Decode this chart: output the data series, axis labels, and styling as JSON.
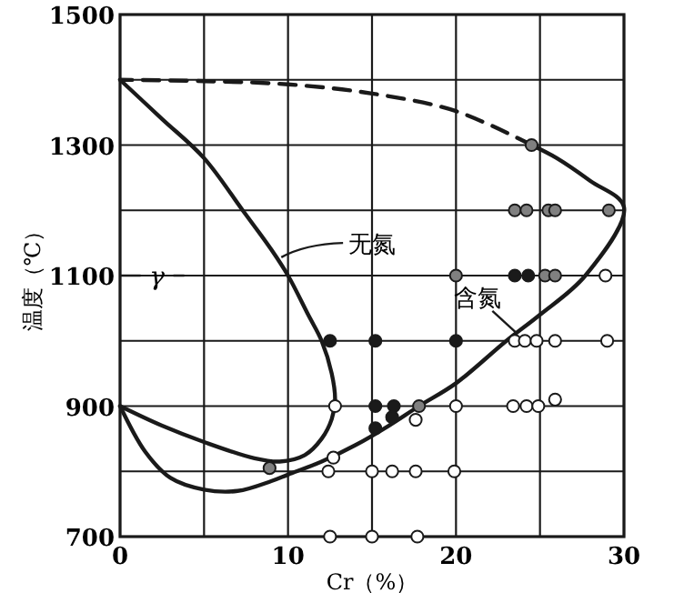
{
  "chart_data": {
    "type": "line",
    "xlabel": "Cr（%）",
    "ylabel": "温度（℃）",
    "xlim": [
      0,
      30
    ],
    "ylim": [
      700,
      1500
    ],
    "xticks": [
      0,
      {
        "value": 5,
        "label": null
      },
      10,
      {
        "value": 15,
        "label": null
      },
      20,
      {
        "value": 25,
        "label": null
      },
      30
    ],
    "yticks": [
      700,
      {
        "value": 800,
        "label": null
      },
      900,
      {
        "value": 1000,
        "label": null
      },
      1100,
      {
        "value": 1200,
        "label": null
      },
      1300,
      {
        "value": 1400,
        "label": null
      },
      1500
    ],
    "grid": true,
    "series": [
      {
        "color": "#1a1a1a",
        "line_style": "solid",
        "marker": "none",
        "x": [
          0,
          2.5,
          5,
          7.3,
          9,
          10,
          11.2,
          12,
          12.6,
          12.8,
          12.6,
          12,
          11,
          9.5,
          8,
          5,
          2.5,
          0
        ],
        "values": [
          1400,
          1340,
          1280,
          1200,
          1140,
          1100,
          1040,
          1000,
          950,
          910,
          880,
          850,
          825,
          815,
          820,
          845,
          870,
          900
        ]
      },
      {
        "color": "#1a1a1a",
        "line_style": "solid",
        "marker": "none",
        "x": [
          0,
          1.5,
          3,
          5,
          7,
          9,
          10,
          12,
          14,
          16,
          17.8,
          20,
          23,
          25,
          27.7,
          30,
          28,
          26,
          24.5
        ],
        "values": [
          900,
          830,
          790,
          772,
          770,
          785,
          795,
          815,
          840,
          870,
          900,
          935,
          1000,
          1040,
          1100,
          1205,
          1245,
          1280,
          1300
        ]
      },
      {
        "color": "#1a1a1a",
        "line_style": "dashed",
        "marker": "none",
        "x": [
          24.5,
          20,
          15,
          10,
          5,
          0
        ],
        "values": [
          1300,
          1352,
          1379,
          1393,
          1398,
          1400
        ]
      },
      {
        "type": "scatter",
        "color": "#1a1a1a",
        "marker": "circle",
        "x": [
          23.5,
          24.3,
          12.5,
          15.2,
          20,
          15.2,
          16.3,
          16.2,
          15.2
        ],
        "values": [
          1100,
          1100,
          1000,
          1000,
          1000,
          900,
          900,
          883,
          866
        ]
      },
      {
        "type": "scatter",
        "color": "#808080",
        "marker": "circle",
        "x": [
          24.5,
          23.5,
          24.2,
          25.5,
          25.9,
          29.1,
          20,
          25.3,
          25.9,
          17.8,
          8.9
        ],
        "values": [
          1300,
          1200,
          1200,
          1200,
          1200,
          1200,
          1100,
          1100,
          1100,
          900,
          805
        ]
      },
      {
        "type": "scatter",
        "color": "#ffffff",
        "marker": "circle",
        "x": [
          28.9,
          23.5,
          24.1,
          24.8,
          25.9,
          29,
          12.8,
          20,
          23.4,
          24.2,
          24.9,
          25.9,
          17.6,
          12.7,
          12.4,
          15,
          16.2,
          17.6,
          19.9,
          12.5,
          15,
          17.7
        ],
        "values": [
          1100,
          1000,
          1000,
          1000,
          1000,
          1000,
          900,
          900,
          900,
          900,
          900,
          910,
          879,
          821,
          800,
          800,
          800,
          800,
          800,
          700,
          700,
          700
        ]
      }
    ],
    "annotations": [
      "γ",
      "无氮",
      "含氮"
    ]
  }
}
